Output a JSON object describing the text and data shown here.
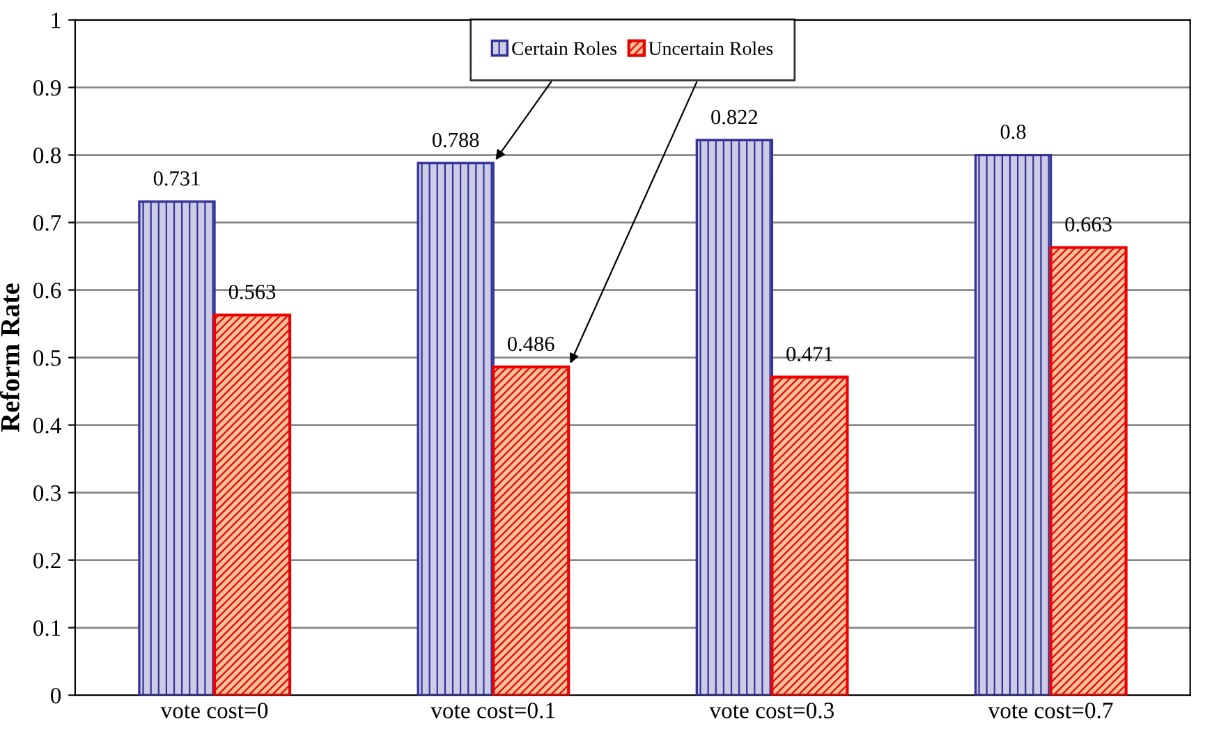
{
  "chart_data": {
    "type": "bar",
    "ylabel": "Reform Rate",
    "categories": [
      "vote cost=0",
      "vote cost=0.1",
      "vote cost=0.3",
      "vote cost=0.7"
    ],
    "series": [
      {
        "name": "Certain Roles",
        "color": "#333399",
        "values": [
          0.731,
          0.788,
          0.822,
          0.8
        ]
      },
      {
        "name": "Uncertain Roles",
        "color": "#ee0000",
        "values": [
          0.563,
          0.486,
          0.471,
          0.663
        ]
      }
    ],
    "ylim": [
      0,
      1
    ],
    "yticks": [
      0,
      0.1,
      0.2,
      0.3,
      0.4,
      0.5,
      0.6,
      0.7,
      0.8,
      0.9,
      1
    ],
    "grid": "y",
    "legend": "top",
    "data_labels": true
  }
}
